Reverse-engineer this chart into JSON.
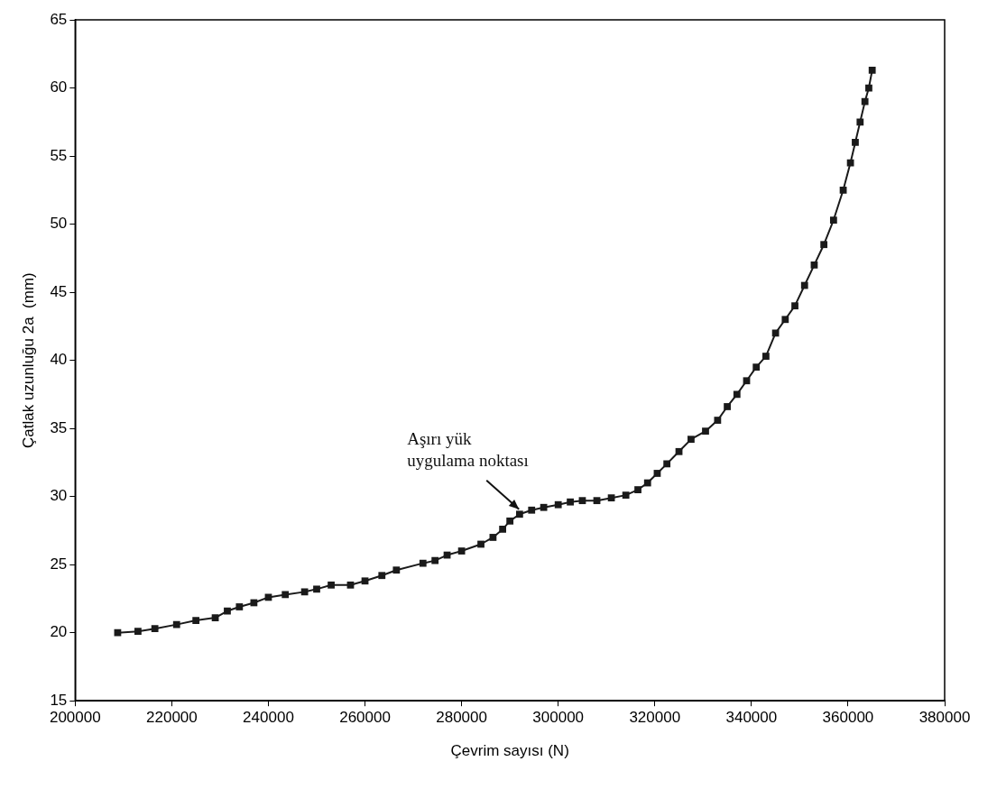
{
  "chart_data": {
    "type": "line",
    "xlabel": "Çevrim sayısı (N)",
    "ylabel": "Çatlak uzunluğu 2a  (mm)",
    "xlim": [
      200000,
      380000
    ],
    "xticks": [
      200000,
      220000,
      240000,
      260000,
      280000,
      300000,
      320000,
      340000,
      360000,
      380000
    ],
    "ylim": [
      15,
      65
    ],
    "yticks": [
      15,
      20,
      25,
      30,
      35,
      40,
      45,
      50,
      55,
      60,
      65
    ],
    "grid": false,
    "legend": false,
    "marker": "square",
    "line_style": "solid",
    "series": [
      {
        "color": "#1a1a1a",
        "x": [
          208800,
          213000,
          216500,
          221000,
          225000,
          229000,
          231500,
          234000,
          237000,
          240000,
          243500,
          247500,
          250000,
          253000,
          257000,
          260000,
          263500,
          266500,
          272000,
          274500,
          277000,
          280000,
          284000,
          286500,
          288500,
          290000,
          292000,
          294500,
          297000,
          300000,
          302500,
          305000,
          308000,
          311000,
          314000,
          316500,
          318500,
          320500,
          322500,
          325000,
          327500,
          330500,
          333000,
          335000,
          337000,
          339000,
          341000,
          343000,
          345000,
          347000,
          349000,
          351000,
          353000,
          355000,
          357000,
          359000,
          360500,
          361500,
          362500,
          363500,
          364300,
          365000
        ],
        "values": [
          20.0,
          20.1,
          20.3,
          20.6,
          20.9,
          21.1,
          21.6,
          21.9,
          22.2,
          22.6,
          22.8,
          23.0,
          23.2,
          23.5,
          23.5,
          23.8,
          24.2,
          24.6,
          25.1,
          25.3,
          25.7,
          26.0,
          26.5,
          27.0,
          27.6,
          28.2,
          28.7,
          29.0,
          29.2,
          29.4,
          29.6,
          29.7,
          29.7,
          29.9,
          30.1,
          30.5,
          31.0,
          31.7,
          32.4,
          33.3,
          34.2,
          34.8,
          35.6,
          36.6,
          37.5,
          38.5,
          39.5,
          40.3,
          42.0,
          43.0,
          44.0,
          45.5,
          47.0,
          48.5,
          50.3,
          52.5,
          54.5,
          56.0,
          57.5,
          59.0,
          60.0,
          61.3
        ]
      }
    ],
    "annotations": [
      {
        "text": "Aşırı yük uygulama noktası",
        "x": 293000,
        "y": 28.8
      }
    ]
  }
}
